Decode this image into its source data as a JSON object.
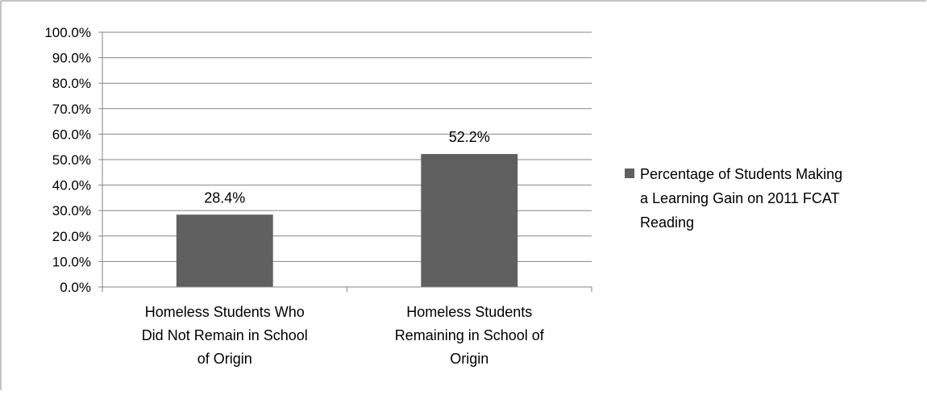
{
  "chart_data": {
    "type": "bar",
    "categories": [
      [
        "Homeless Students Who",
        "Did Not Remain in School",
        "of Origin"
      ],
      [
        "Homeless Students",
        "Remaining in School of",
        "Origin"
      ]
    ],
    "series": [
      {
        "name": "Percentage of Students Making a Learning Gain on 2011 FCAT Reading",
        "values": [
          28.4,
          52.2
        ],
        "data_labels": [
          "28.4%",
          "52.2%"
        ],
        "color": "#606060"
      }
    ],
    "y_ticks": [
      "0.0%",
      "10.0%",
      "20.0%",
      "30.0%",
      "40.0%",
      "50.0%",
      "60.0%",
      "70.0%",
      "80.0%",
      "90.0%",
      "100.0%"
    ],
    "ylim": [
      0,
      100
    ],
    "grid": true,
    "legend": {
      "position": "right",
      "lines": [
        "Percentage of Students Making",
        "a Learning Gain on 2011 FCAT",
        "Reading"
      ]
    },
    "title": "",
    "xlabel": "",
    "ylabel": ""
  }
}
